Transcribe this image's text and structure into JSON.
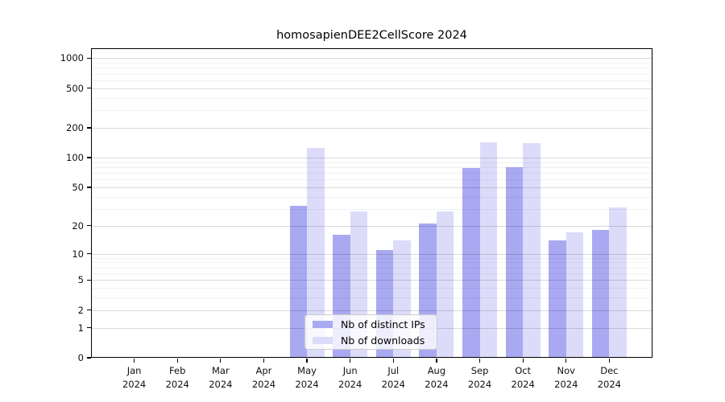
{
  "chart_data": {
    "type": "bar",
    "title": "homosapienDEE2CellScore 2024",
    "categories": [
      "Jan 2024",
      "Feb 2024",
      "Mar 2024",
      "Apr 2024",
      "May 2024",
      "Jun 2024",
      "Jul 2024",
      "Aug 2024",
      "Sep 2024",
      "Oct 2024",
      "Nov 2024",
      "Dec 2024"
    ],
    "series": [
      {
        "name": "Nb of distinct IPs",
        "color": "#a9a9f2",
        "values": [
          0,
          0,
          0,
          0,
          32,
          16,
          11,
          21,
          78,
          80,
          14,
          18
        ]
      },
      {
        "name": "Nb of downloads",
        "color": "#dcdcfa",
        "values": [
          0,
          0,
          0,
          0,
          125,
          28,
          14,
          28,
          144,
          140,
          17,
          31
        ]
      }
    ],
    "yscale": "log1p",
    "yticks": [
      0,
      1,
      2,
      5,
      10,
      20,
      50,
      100,
      200,
      500,
      1000
    ],
    "minor_gridlines": [
      3,
      4,
      6,
      7,
      8,
      9,
      30,
      40,
      60,
      70,
      80,
      90,
      300,
      400,
      600,
      700,
      800,
      900
    ],
    "ylim": [
      0,
      1258
    ],
    "grid": true,
    "legend_position": "inside-bottom-center"
  }
}
